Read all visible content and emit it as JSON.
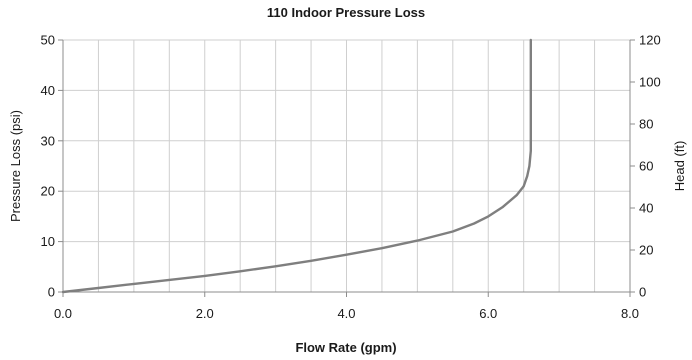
{
  "chart_data": {
    "type": "line",
    "title": "110 Indoor Pressure Loss",
    "xlabel": "Flow Rate (gpm)",
    "ylabel": "Pressure Loss (psi)",
    "y2label": "Head (ft)",
    "xlim": [
      0,
      8
    ],
    "ylim": [
      0,
      50
    ],
    "y2lim": [
      0,
      120
    ],
    "x_ticks": [
      "0.0",
      "2.0",
      "4.0",
      "6.0",
      "8.0"
    ],
    "y_ticks": [
      "0",
      "10",
      "20",
      "30",
      "40",
      "50"
    ],
    "y2_ticks": [
      "0",
      "20",
      "40",
      "60",
      "80",
      "100",
      "120"
    ],
    "grid": true,
    "series": [
      {
        "color": "#7f7f7f",
        "x": [
          0.0,
          0.5,
          1.0,
          1.5,
          2.0,
          2.5,
          3.0,
          3.5,
          4.0,
          4.5,
          5.0,
          5.5,
          5.8,
          6.0,
          6.2,
          6.4,
          6.5,
          6.55,
          6.58,
          6.6,
          6.6,
          6.6,
          6.6
        ],
        "y": [
          0.0,
          0.8,
          1.6,
          2.4,
          3.2,
          4.1,
          5.1,
          6.2,
          7.4,
          8.7,
          10.2,
          12.0,
          13.6,
          15.0,
          16.8,
          19.2,
          21.0,
          23.0,
          25.0,
          28.0,
          35.0,
          45.0,
          50.0
        ]
      }
    ]
  }
}
